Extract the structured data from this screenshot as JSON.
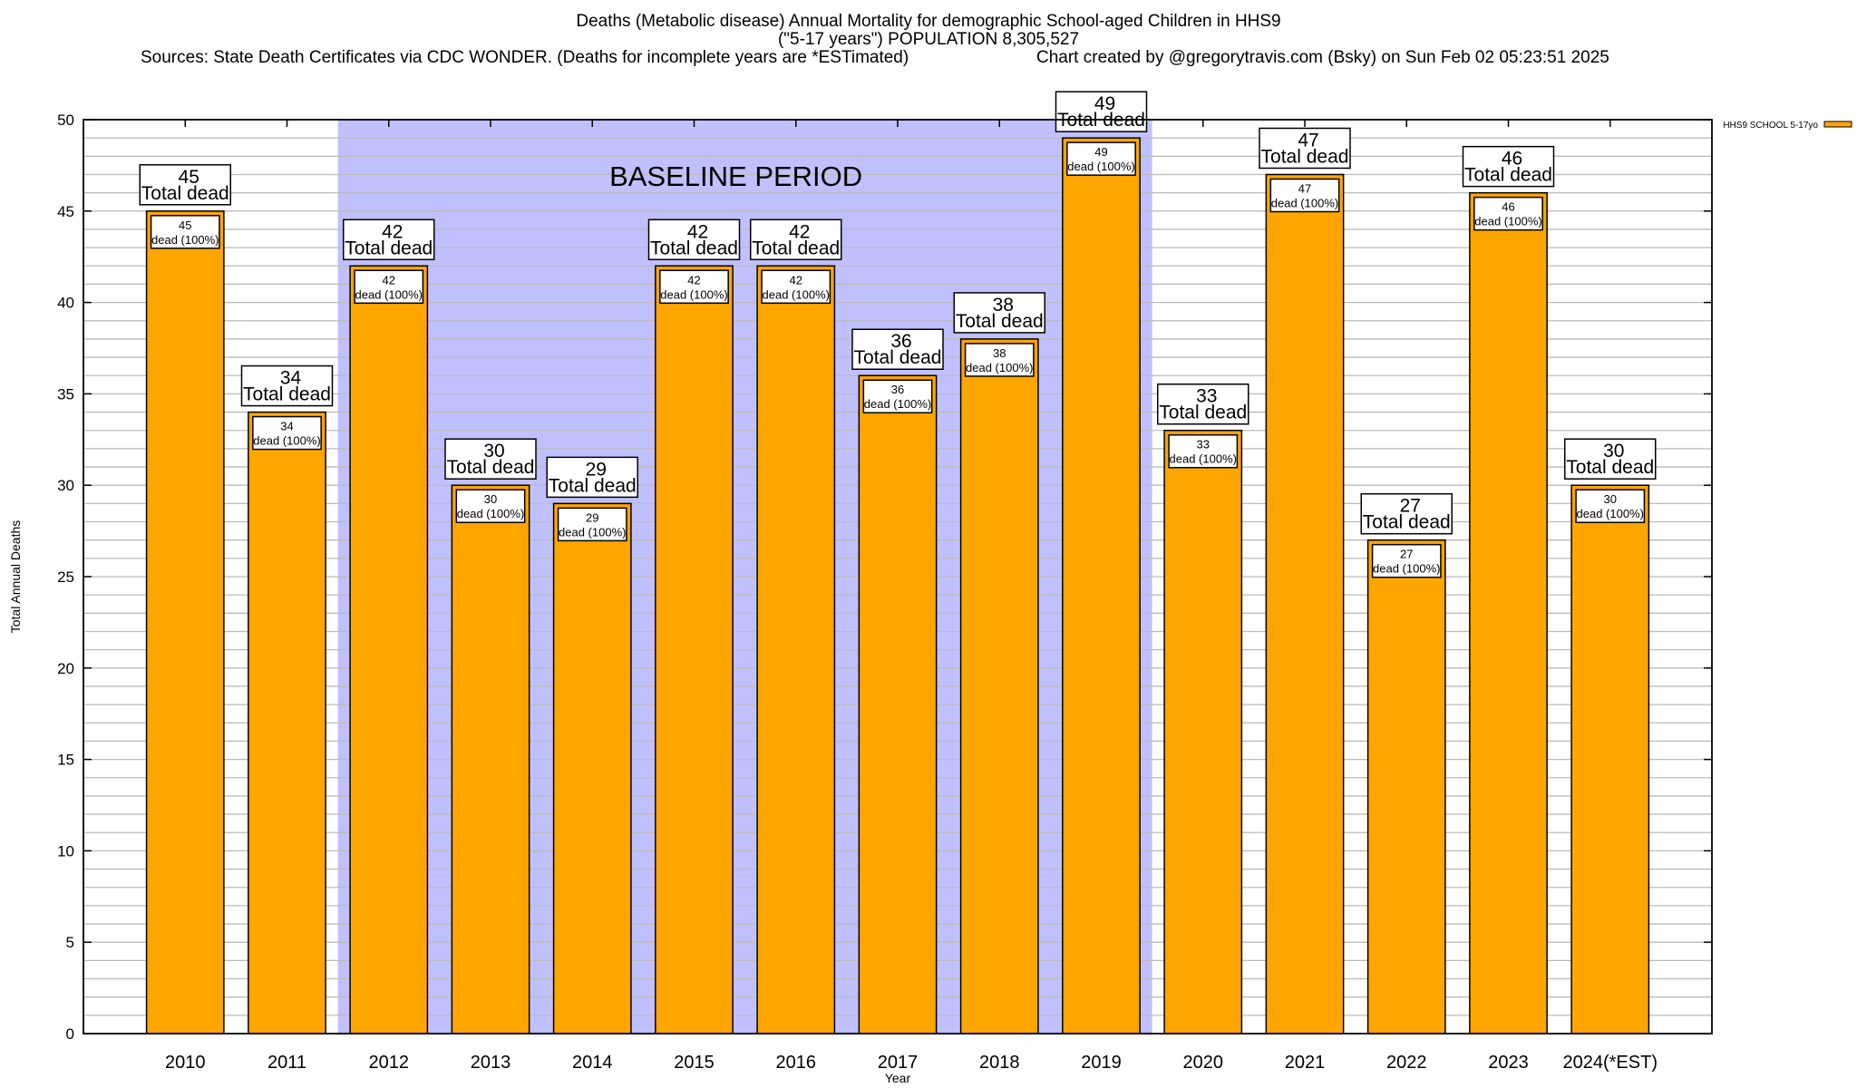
{
  "title": {
    "line1": "Deaths (Metabolic disease) Annual Mortality for demographic School-aged Children in HHS9",
    "line2": "(\"5-17 years\") POPULATION 8,305,527",
    "sources": "Sources: State Death Certificates via CDC WONDER. (Deaths for incomplete years are *ESTimated)",
    "credit": "Chart created by @gregorytravis.com (Bsky) on Sun Feb 02 05:23:51 2025"
  },
  "colors": {
    "bar": "#FFA500",
    "baseline_band": "#C0C0FF",
    "grid": "#BBBBBB"
  },
  "chart_data": {
    "type": "bar",
    "xlabel": "Year",
    "ylabel": "Total Annual Deaths",
    "ylim": [
      0,
      50
    ],
    "yticks": [
      0,
      5,
      10,
      15,
      20,
      25,
      30,
      35,
      40,
      45,
      50
    ],
    "ytick_labels": [
      "0",
      "5",
      "10",
      "15",
      "20",
      "25",
      "30",
      "35",
      "40",
      "45",
      "50"
    ],
    "minor_grid_step": 1,
    "grid": true,
    "legend": {
      "position": "top-right",
      "entries": [
        "HHS9 SCHOOL 5-17yo"
      ]
    },
    "categories": [
      "2010",
      "2011",
      "2012",
      "2013",
      "2014",
      "2015",
      "2016",
      "2017",
      "2018",
      "2019",
      "2020",
      "2021",
      "2022",
      "2023",
      "2024(*EST)"
    ],
    "series": [
      {
        "name": "HHS9 SCHOOL 5-17yo",
        "values": [
          45,
          34,
          42,
          30,
          29,
          42,
          42,
          36,
          38,
          49,
          33,
          47,
          27,
          46,
          30
        ]
      }
    ],
    "total_label_suffix": "Total dead",
    "inner_label_suffix": "dead (100%)",
    "annotation": {
      "text": "BASELINE PERIOD",
      "from_category": "2012",
      "to_category": "2019"
    }
  }
}
